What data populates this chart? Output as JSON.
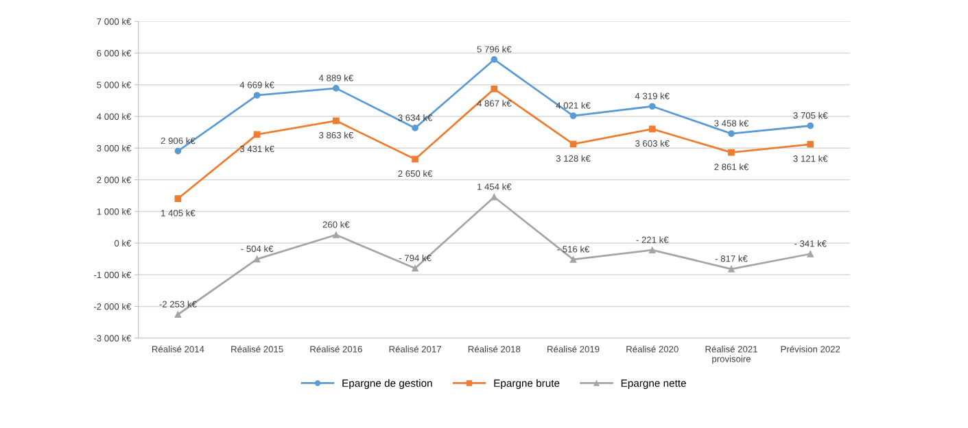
{
  "chart_data": {
    "type": "line",
    "categories": [
      "Réalisé 2014",
      "Réalisé 2015",
      "Réalisé 2016",
      "Réalisé 2017",
      "Réalisé 2018",
      "Réalisé 2019",
      "Réalisé 2020",
      "Réalisé 2021\nprovisoire",
      "Prévision 2022"
    ],
    "series": [
      {
        "name": "Epargne de gestion",
        "color": "#5b9bd5",
        "marker": "circle",
        "values": [
          2906,
          4669,
          4889,
          3634,
          5796,
          4021,
          4319,
          3458,
          3705
        ],
        "value_labels": [
          "2 906 k€",
          "4 669 k€",
          "4 889 k€",
          "3 634 k€",
          "5 796 k€",
          "4 021 k€",
          "4 319 k€",
          "3 458 k€",
          "3 705 k€"
        ]
      },
      {
        "name": "Epargne brute",
        "color": "#ed7d31",
        "marker": "square",
        "values": [
          1405,
          3431,
          3863,
          2650,
          4867,
          3128,
          3603,
          2861,
          3121
        ],
        "value_labels": [
          "1 405 k€",
          "3 431 k€",
          "3 863 k€",
          "2 650 k€",
          "4 867 k€",
          "3 128 k€",
          "3 603 k€",
          "2 861 k€",
          "3 121 k€"
        ]
      },
      {
        "name": "Epargne nette",
        "color": "#a5a5a5",
        "marker": "triangle",
        "values": [
          -2253,
          -504,
          260,
          -794,
          1454,
          -516,
          -221,
          -817,
          -341
        ],
        "value_labels": [
          "-2 253 k€",
          "- 504 k€",
          "260 k€",
          "- 794 k€",
          "1 454 k€",
          "- 516 k€",
          "- 221 k€",
          "- 817 k€",
          "- 341 k€"
        ]
      }
    ],
    "ylim": [
      -3000,
      7000
    ],
    "yticks": [
      {
        "value": -3000,
        "label": "-3 000 k€"
      },
      {
        "value": -2000,
        "label": "-2 000 k€"
      },
      {
        "value": -1000,
        "label": "-1 000 k€"
      },
      {
        "value": 0,
        "label": "0 k€"
      },
      {
        "value": 1000,
        "label": "1 000 k€"
      },
      {
        "value": 2000,
        "label": "2 000 k€"
      },
      {
        "value": 3000,
        "label": "3 000 k€"
      },
      {
        "value": 4000,
        "label": "4 000 k€"
      },
      {
        "value": 5000,
        "label": "5 000 k€"
      },
      {
        "value": 6000,
        "label": "6 000 k€"
      },
      {
        "value": 7000,
        "label": "7 000 k€"
      }
    ],
    "grid": "y",
    "legend": "bottom",
    "line_style": "solid"
  }
}
